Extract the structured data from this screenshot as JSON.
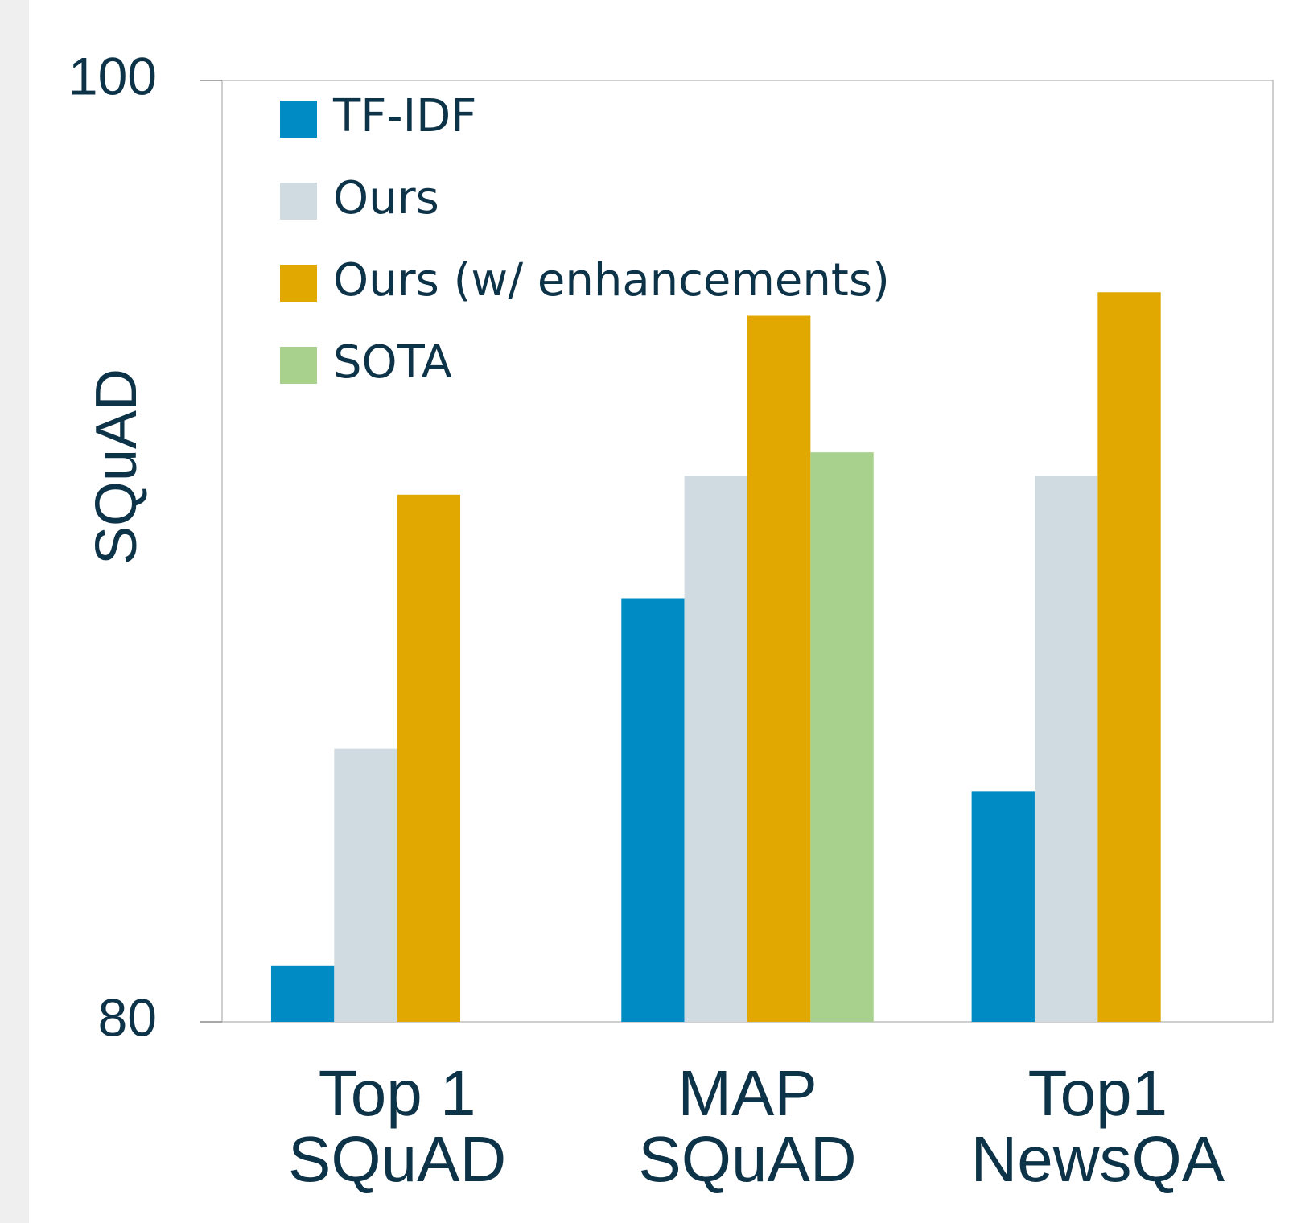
{
  "chart_data": {
    "type": "bar",
    "y_label": "SQuAD",
    "categories": [
      "Top 1\nSQuAD",
      "MAP\nSQuAD",
      "Top1\nNewsQA"
    ],
    "series": [
      {
        "name": "TF-IDF",
        "color": "#008bc4",
        "values": [
          81.2,
          89.0,
          84.9
        ]
      },
      {
        "name": "Ours",
        "color": "#cfdbe1",
        "values": [
          85.8,
          91.6,
          91.6
        ]
      },
      {
        "name": "Ours (w/ enhancements)",
        "color": "#e0a800",
        "values": [
          91.2,
          95.0,
          95.5
        ]
      },
      {
        "name": "SOTA",
        "color": "#a9d18e",
        "values": [
          null,
          92.1,
          null
        ]
      }
    ],
    "ylim": [
      80,
      100
    ],
    "yticks": [
      80,
      100
    ],
    "grid": false,
    "legend": "upper left"
  }
}
